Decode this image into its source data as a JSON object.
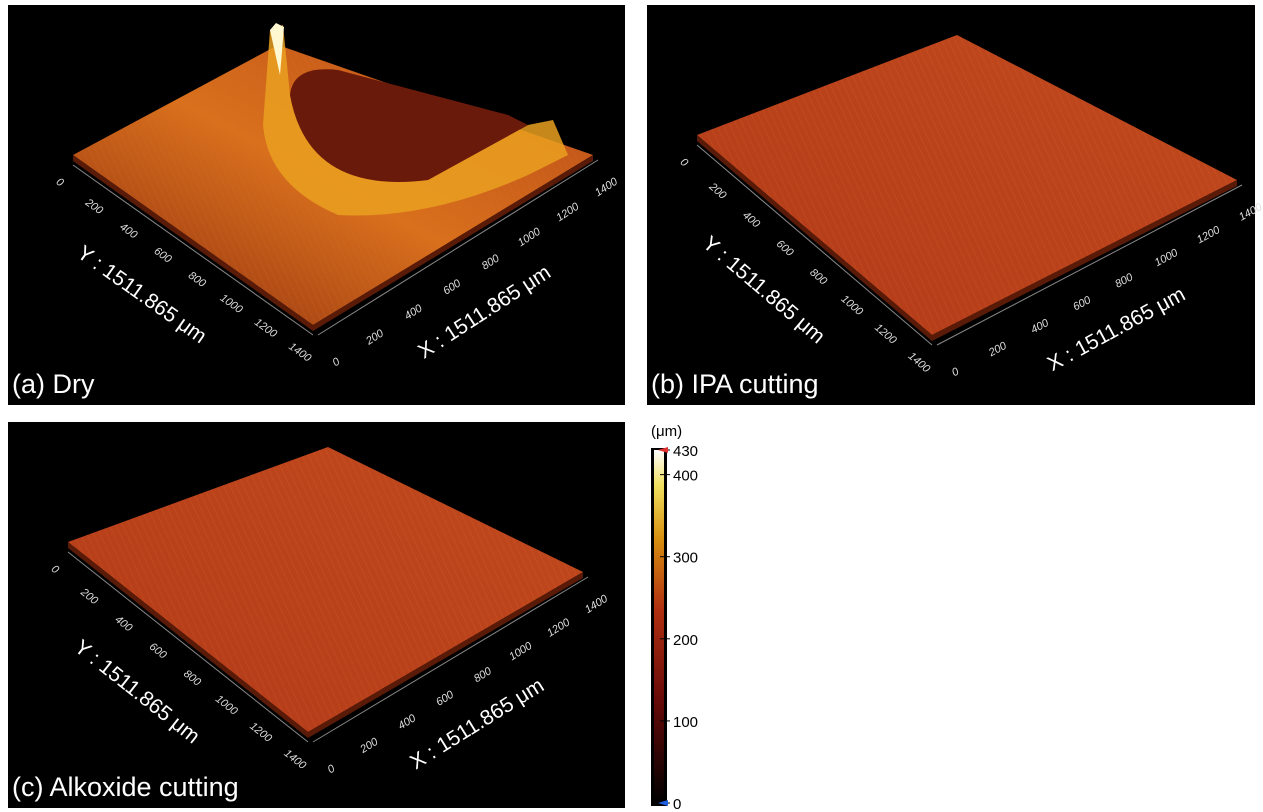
{
  "panels": [
    {
      "label": "(a) Dry",
      "x_axis_label": "X : 1511.865 μm",
      "y_axis_label": "Y : 1511.865 μm",
      "x_ticks": [
        "0",
        "200",
        "400",
        "600",
        "800",
        "1000",
        "1200",
        "1400"
      ],
      "y_ticks": [
        "0",
        "200",
        "400",
        "600",
        "800",
        "1000",
        "1200",
        "1400"
      ]
    },
    {
      "label": "(b) IPA cutting",
      "x_axis_label": "X : 1511.865 μm",
      "y_axis_label": "Y : 1511.865 μm",
      "x_ticks": [
        "0",
        "200",
        "400",
        "600",
        "800",
        "1000",
        "1200",
        "1400"
      ],
      "y_ticks": [
        "0",
        "200",
        "400",
        "600",
        "800",
        "1000",
        "1200",
        "1400"
      ]
    },
    {
      "label": "(c) Alkoxide cutting",
      "x_axis_label": "X : 1511.865 μm",
      "y_axis_label": "Y : 1511.865 μm",
      "x_ticks": [
        "0",
        "200",
        "400",
        "600",
        "800",
        "1000",
        "1200",
        "1400"
      ],
      "y_ticks": [
        "0",
        "200",
        "400",
        "600",
        "800",
        "1000",
        "1200",
        "1400"
      ]
    }
  ],
  "colorbar": {
    "unit": "(μm)",
    "range": [
      0,
      430
    ],
    "ticks": [
      0,
      100,
      200,
      300,
      400,
      430
    ]
  }
}
